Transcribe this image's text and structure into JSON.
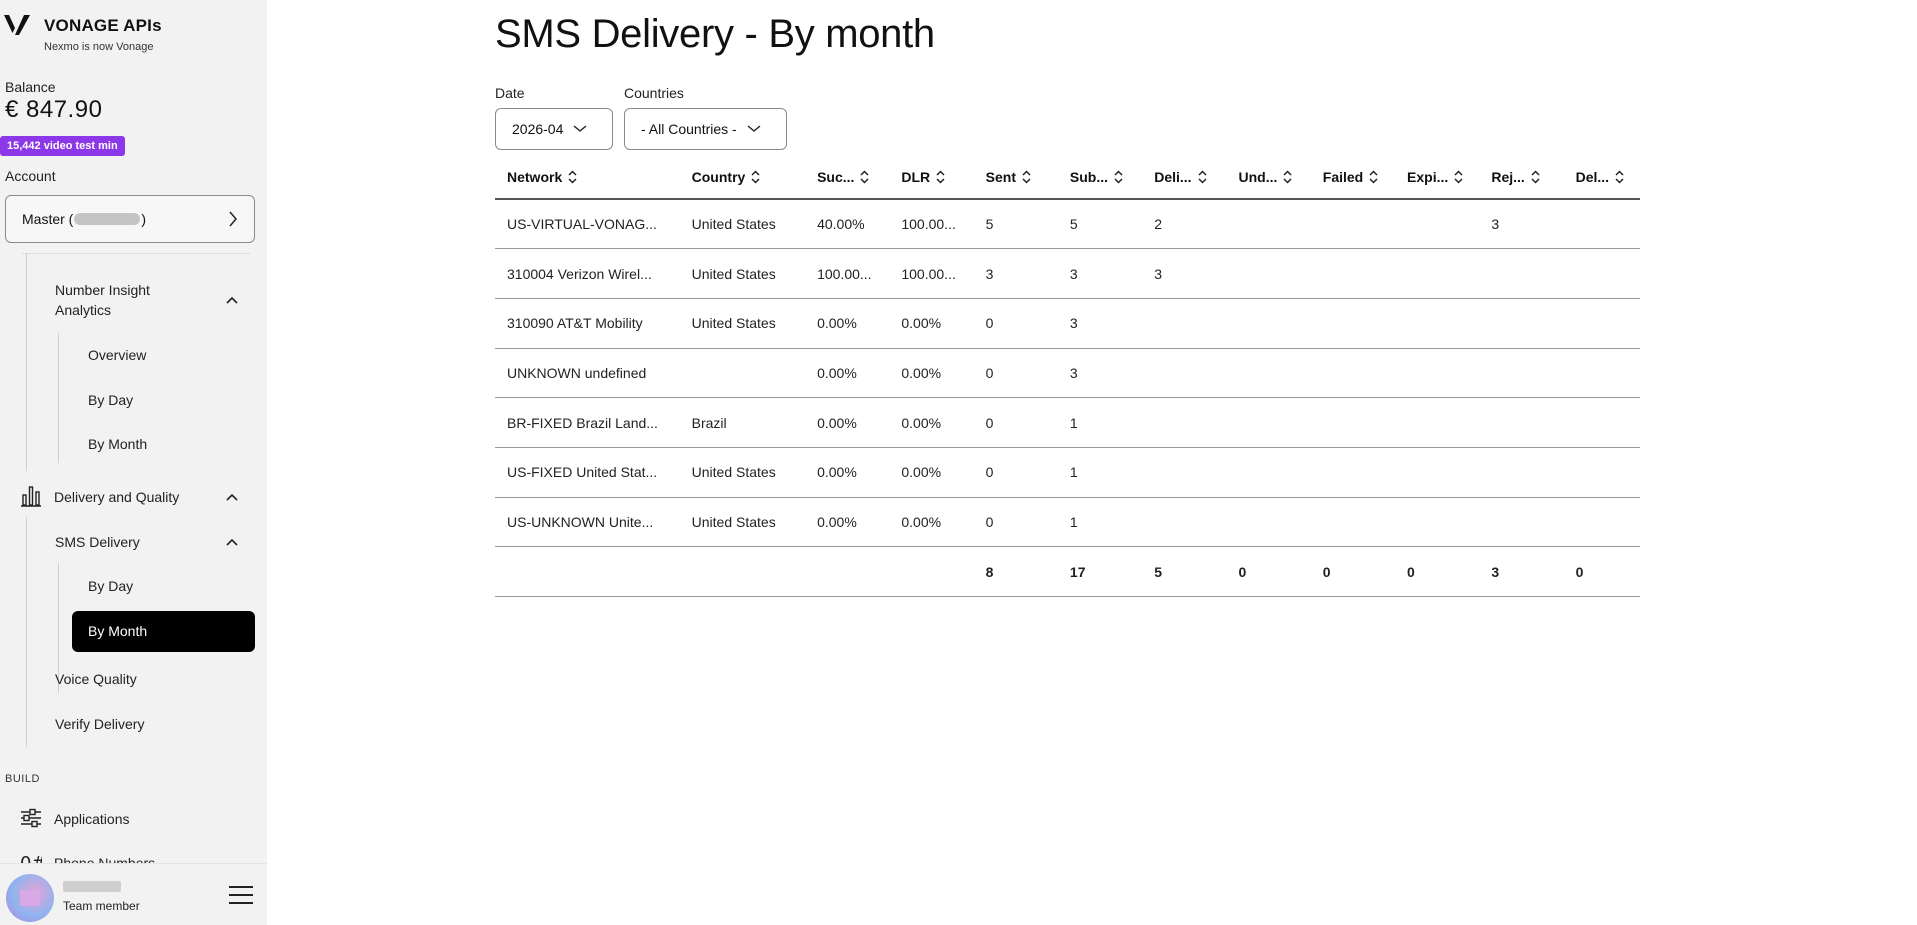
{
  "brand": {
    "name": "VONAGE APIs",
    "subtitle": "Nexmo is now Vonage"
  },
  "balance": {
    "label": "Balance",
    "value": "€ 847.90",
    "promo": "15,442 video test min"
  },
  "account": {
    "label": "Account",
    "value_prefix": "Master (",
    "value_suffix": ")"
  },
  "nav": {
    "number_insight": {
      "label": "Number Insight Analytics",
      "label_line1": "Number Insight",
      "label_line2": "Analytics"
    },
    "ni_overview": "Overview",
    "ni_by_day": "By Day",
    "ni_by_month": "By Month",
    "delivery_quality": "Delivery and Quality",
    "sms_delivery": "SMS Delivery",
    "sms_by_day": "By Day",
    "sms_by_month": "By Month",
    "voice_quality": "Voice Quality",
    "verify_delivery": "Verify Delivery",
    "build_section": "BUILD",
    "applications": "Applications",
    "phone_numbers_partial": "Phone Numbers"
  },
  "user": {
    "role": "Team member"
  },
  "page": {
    "title": "SMS Delivery - By month"
  },
  "filters": {
    "date": {
      "label": "Date",
      "value": "2026-04"
    },
    "countries": {
      "label": "Countries",
      "value": "- All Countries -"
    }
  },
  "colors": {
    "accent_purple": "#8c37e8",
    "negative": "#e0303c",
    "positive": "#1a8a3e",
    "active_nav_bg": "#000000"
  },
  "table": {
    "headers": [
      "Network",
      "Country",
      "Suc...",
      "DLR",
      "Sent",
      "Sub...",
      "Deli...",
      "Und...",
      "Failed",
      "Expi...",
      "Rej...",
      "Del..."
    ],
    "rows": [
      {
        "network": "US-VIRTUAL-VONAG...",
        "country": "United States",
        "success": "40.00%",
        "success_status": "neg",
        "dlr": "100.00...",
        "dlr_status": "pos",
        "sent": "5",
        "submitted": "5",
        "delivered": "2",
        "undelivered": "",
        "failed": "",
        "expired": "",
        "rejected": "3",
        "deleted": ""
      },
      {
        "network": "310004 Verizon Wirel...",
        "country": "United States",
        "success": "100.00...",
        "success_status": "pos",
        "dlr": "100.00...",
        "dlr_status": "pos",
        "sent": "3",
        "submitted": "3",
        "delivered": "3",
        "undelivered": "",
        "failed": "",
        "expired": "",
        "rejected": "",
        "deleted": ""
      },
      {
        "network": "310090 AT&T Mobility",
        "country": "United States",
        "success": "0.00%",
        "success_status": "neg",
        "dlr": "0.00%",
        "dlr_status": "neg",
        "sent": "0",
        "submitted": "3",
        "delivered": "",
        "undelivered": "",
        "failed": "",
        "expired": "",
        "rejected": "",
        "deleted": ""
      },
      {
        "network": "UNKNOWN undefined",
        "country": "",
        "success": "0.00%",
        "success_status": "neg",
        "dlr": "0.00%",
        "dlr_status": "neg",
        "sent": "0",
        "submitted": "3",
        "delivered": "",
        "undelivered": "",
        "failed": "",
        "expired": "",
        "rejected": "",
        "deleted": ""
      },
      {
        "network": "BR-FIXED Brazil Land...",
        "country": "Brazil",
        "success": "0.00%",
        "success_status": "neg",
        "dlr": "0.00%",
        "dlr_status": "neg",
        "sent": "0",
        "submitted": "1",
        "delivered": "",
        "undelivered": "",
        "failed": "",
        "expired": "",
        "rejected": "",
        "deleted": ""
      },
      {
        "network": "US-FIXED United Stat...",
        "country": "United States",
        "success": "0.00%",
        "success_status": "neg",
        "dlr": "0.00%",
        "dlr_status": "neg",
        "sent": "0",
        "submitted": "1",
        "delivered": "",
        "undelivered": "",
        "failed": "",
        "expired": "",
        "rejected": "",
        "deleted": ""
      },
      {
        "network": "US-UNKNOWN Unite...",
        "country": "United States",
        "success": "0.00%",
        "success_status": "neg",
        "dlr": "0.00%",
        "dlr_status": "neg",
        "sent": "0",
        "submitted": "1",
        "delivered": "",
        "undelivered": "",
        "failed": "",
        "expired": "",
        "rejected": "",
        "deleted": ""
      }
    ],
    "totals": {
      "network": "",
      "country": "",
      "success": "",
      "dlr": "",
      "sent": "8",
      "submitted": "17",
      "delivered": "5",
      "undelivered": "0",
      "failed": "0",
      "expired": "0",
      "rejected": "3",
      "deleted": "0"
    }
  }
}
